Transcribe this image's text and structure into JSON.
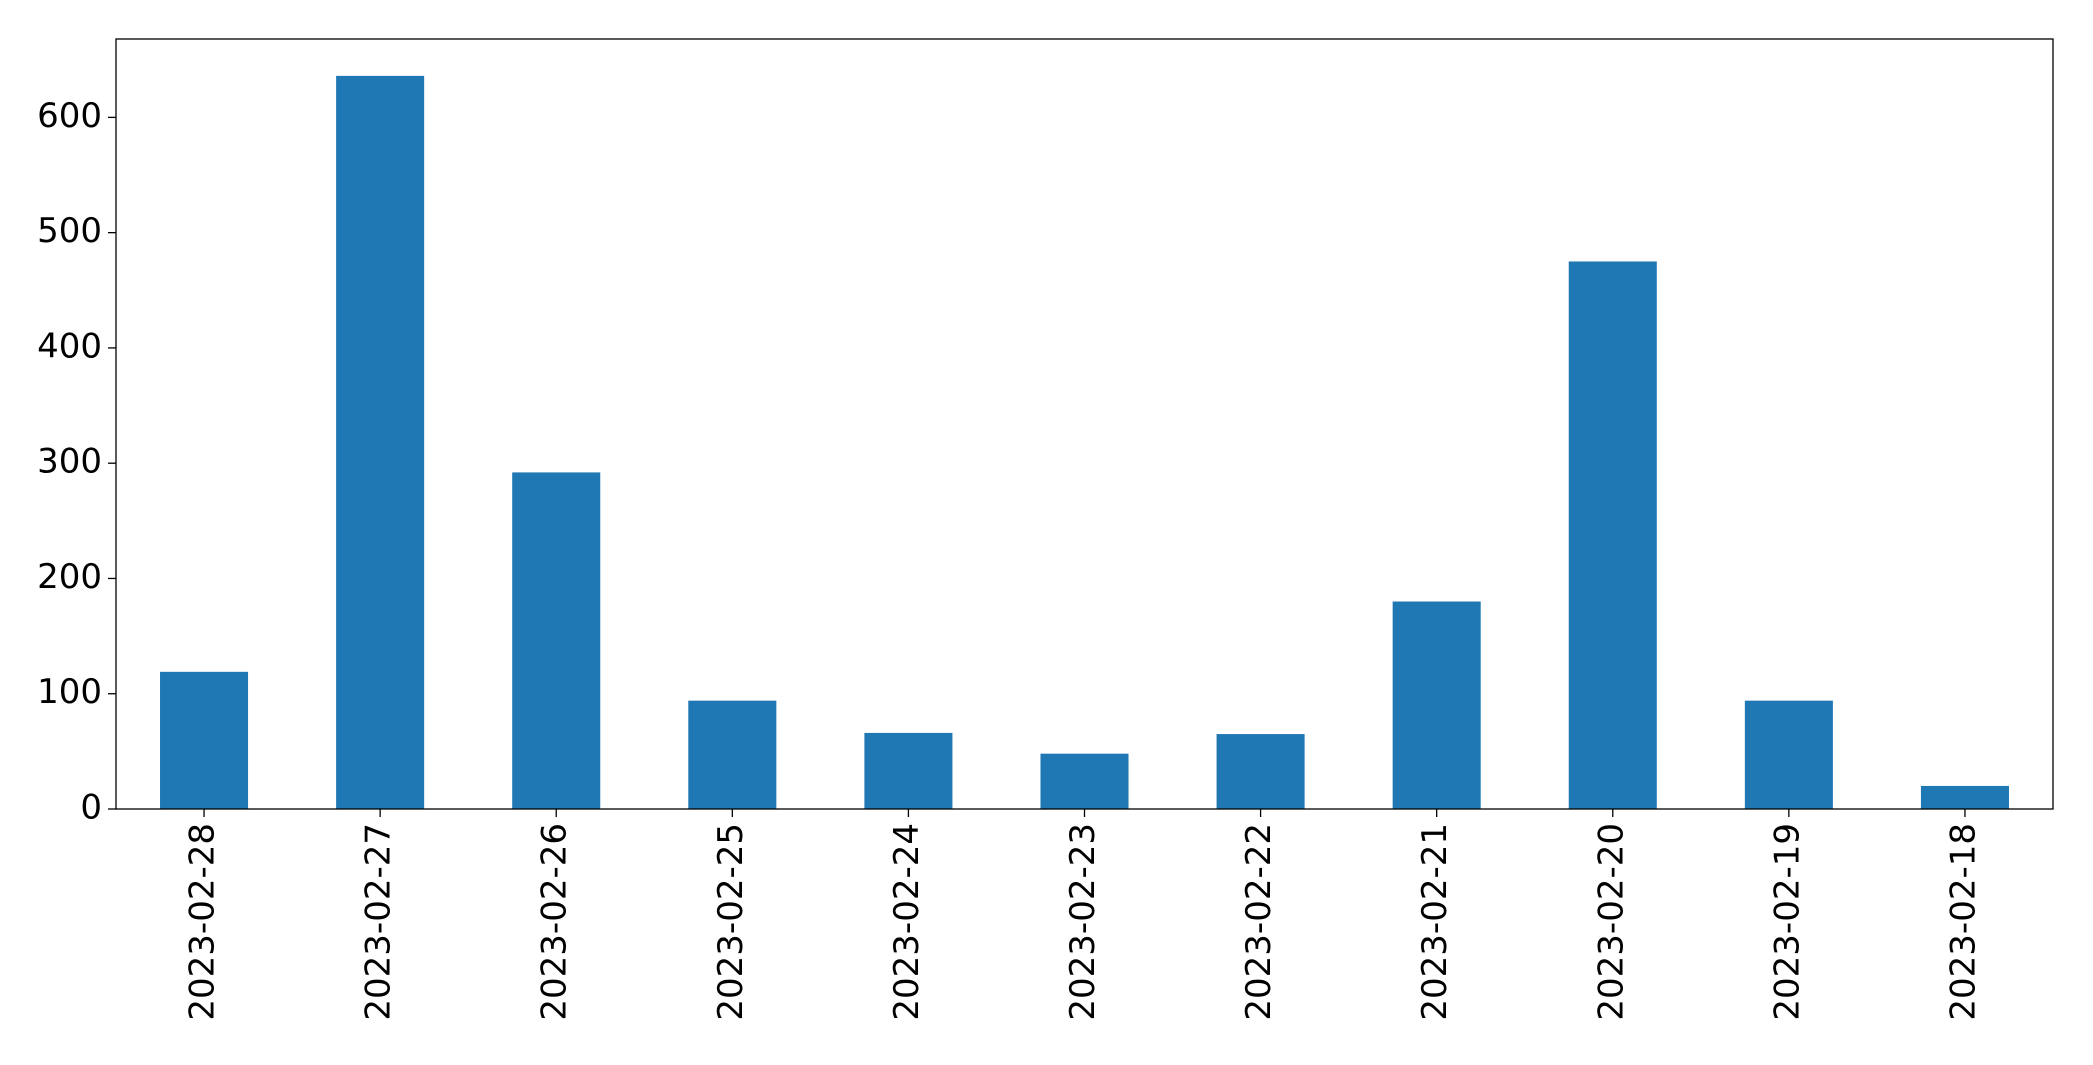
{
  "chart_data": {
    "type": "bar",
    "categories": [
      "2023-02-28",
      "2023-02-27",
      "2023-02-26",
      "2023-02-25",
      "2023-02-24",
      "2023-02-23",
      "2023-02-22",
      "2023-02-21",
      "2023-02-20",
      "2023-02-19",
      "2023-02-18"
    ],
    "values": [
      119,
      636,
      292,
      94,
      66,
      48,
      65,
      180,
      475,
      94,
      20
    ],
    "color": "#1f77b4",
    "ylim": [
      0,
      668
    ],
    "yticks": [
      0,
      100,
      200,
      300,
      400,
      500,
      600
    ],
    "grid": false
  }
}
